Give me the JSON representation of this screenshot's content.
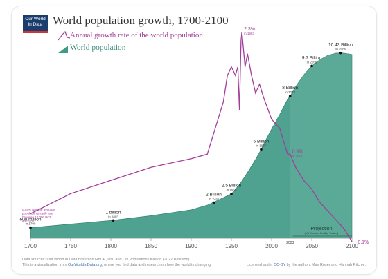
{
  "logo": {
    "line1": "Our World",
    "line2": "in Data"
  },
  "title": "World population growth, 1700-2100",
  "chart_data": {
    "type": "area",
    "title": "World population growth, 1700-2100",
    "series": [
      {
        "name": "Annual growth rate of the world population",
        "type": "line",
        "color": "#a23d9a",
        "x": [
          1700,
          1750,
          1800,
          1850,
          1900,
          1920,
          1930,
          1940,
          1945,
          1950,
          1955,
          1958,
          1960,
          1962,
          1963,
          1965,
          1967,
          1970,
          1975,
          1980,
          1985,
          1990,
          2000,
          2010,
          2020,
          2023,
          2030,
          2040,
          2050,
          2060,
          2070,
          2080,
          2090,
          2100
        ],
        "y": [
          0.22,
          0.45,
          0.6,
          0.75,
          0.85,
          0.9,
          1.2,
          1.5,
          1.8,
          1.9,
          1.8,
          1.9,
          1.4,
          2.2,
          2.3,
          2.1,
          1.9,
          2.05,
          1.8,
          1.6,
          1.7,
          1.55,
          1.3,
          1.2,
          0.9,
          0.9,
          0.75,
          0.6,
          0.5,
          0.35,
          0.25,
          0.15,
          0.05,
          -0.1
        ]
      },
      {
        "name": "World population",
        "type": "area",
        "color": "#3f9a86",
        "x": [
          1700,
          1750,
          1800,
          1850,
          1900,
          1920,
          1930,
          1950,
          1960,
          1970,
          1980,
          1987,
          1990,
          2000,
          2010,
          2020,
          2023,
          2030,
          2040,
          2050,
          2060,
          2070,
          2080,
          2086,
          2090,
          2100
        ],
        "y": [
          0.6,
          0.8,
          1.0,
          1.27,
          1.6,
          1.86,
          2.07,
          2.5,
          3.02,
          3.7,
          4.44,
          5.0,
          5.3,
          6.15,
          6.96,
          7.84,
          8.0,
          8.55,
          9.2,
          9.7,
          10.05,
          10.3,
          10.42,
          10.43,
          10.42,
          10.35
        ]
      }
    ],
    "xlim": [
      1700,
      2100
    ],
    "ylim_population_billions": [
      0,
      11
    ],
    "ylim_growth_percent": [
      -0.1,
      2.3
    ],
    "xticks": [
      "1700",
      "1750",
      "1800",
      "1850",
      "1900",
      "1950",
      "2000",
      "2050",
      "2100"
    ],
    "projection_start": 2023,
    "annotations": {
      "pop_labels": [
        {
          "value": "600 million",
          "year": "in 1700",
          "x": 1700,
          "y": 0.6
        },
        {
          "value": "1 billion",
          "year": "in 1803",
          "x": 1803,
          "y": 1.0
        },
        {
          "value": "2 Billion",
          "year": "in 1928",
          "x": 1928,
          "y": 2.0
        },
        {
          "value": "2.5 Billion",
          "year": "in 1950",
          "x": 1950,
          "y": 2.5
        },
        {
          "value": "5 Billion",
          "year": "in 1987",
          "x": 1987,
          "y": 5.0
        },
        {
          "value": "8 Billion",
          "year": "in 2023",
          "x": 2023,
          "y": 8.0
        },
        {
          "value": "9.7 Billion",
          "year": "in 2050",
          "x": 2050,
          "y": 9.7
        },
        {
          "value": "10.43 Billion",
          "year": "in 2086",
          "x": 2086,
          "y": 10.43
        }
      ],
      "rate_labels": [
        {
          "value": "2.3%",
          "year": "in 1963",
          "x": 1963,
          "y": 2.3
        },
        {
          "value": "0.9%",
          "year": "in 2023",
          "x": 2023,
          "y": 0.9
        },
        {
          "value": "-0.1%",
          "year": "",
          "x": 2100,
          "y": -0.1
        }
      ],
      "note_1700": [
        "0.04% was the average",
        "population growth rate",
        "between 10,000 BCE",
        "and 1700"
      ],
      "projection_label": "Projection",
      "projection_sub": "(UN Medium Fertility Variant)",
      "proj_year": "2023"
    }
  },
  "footer": {
    "left1": "Data sources: Our World in Data based on HYDE, UN, and UN Population Division (2022 Revision)",
    "left2_pre": "This is a visualization from ",
    "left2_link": "OurWorldinData.org",
    "left2_post": ", where you find data and research on how the world is changing.",
    "right_pre": "Licensed under ",
    "right_link": "CC-BY",
    "right_post": " by the authors Max Roser and Hannah Ritchie."
  }
}
